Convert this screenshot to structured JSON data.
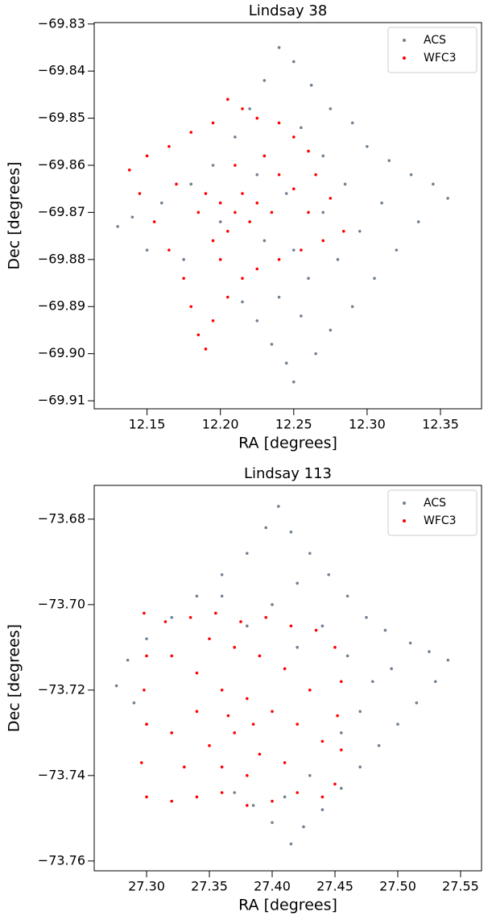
{
  "chart_data": [
    {
      "type": "scatter",
      "title": "Lindsay 38",
      "xlabel": "RA [degrees]",
      "ylabel": "Dec [degrees]",
      "legend": "upper right",
      "xlim": [
        12.114,
        12.378
      ],
      "ylim": [
        -69.9117,
        -69.8297
      ],
      "xticks": [
        12.15,
        {
          "value": 12.2,
          "label": "12.20"
        },
        12.25,
        {
          "value": 12.3,
          "label": "12.30"
        },
        12.35
      ],
      "yticks": [
        {
          "value": -69.83,
          "label": "−69.83"
        },
        {
          "value": -69.84,
          "label": "−69.84"
        },
        {
          "value": -69.85,
          "label": "−69.85"
        },
        {
          "value": -69.86,
          "label": "−69.86"
        },
        {
          "value": -69.87,
          "label": "−69.87"
        },
        {
          "value": -69.88,
          "label": "−69.88"
        },
        {
          "value": -69.89,
          "label": "−69.89"
        },
        {
          "value": -69.9,
          "label": "−69.90"
        },
        {
          "value": -69.91,
          "label": "−69.91"
        }
      ],
      "series": [
        {
          "name": "ACS",
          "color": "#708090",
          "x": [
            12.24,
            12.25,
            12.23,
            12.262,
            12.275,
            12.22,
            12.29,
            12.255,
            12.3,
            12.21,
            12.315,
            12.27,
            12.33,
            12.285,
            12.345,
            12.355,
            12.31,
            12.195,
            12.18,
            12.16,
            12.14,
            12.13,
            12.15,
            12.335,
            12.32,
            12.295,
            12.305,
            12.29,
            12.275,
            12.265,
            12.25,
            12.245,
            12.235,
            12.225,
            12.215,
            12.24,
            12.26,
            12.25,
            12.23,
            12.27,
            12.245,
            12.225,
            12.2,
            12.175,
            12.28,
            12.255
          ],
          "y": [
            -69.835,
            -69.838,
            -69.842,
            -69.843,
            -69.848,
            -69.848,
            -69.851,
            -69.852,
            -69.856,
            -69.854,
            -69.859,
            -69.858,
            -69.862,
            -69.864,
            -69.864,
            -69.867,
            -69.868,
            -69.86,
            -69.864,
            -69.868,
            -69.871,
            -69.873,
            -69.878,
            -69.872,
            -69.878,
            -69.874,
            -69.884,
            -69.89,
            -69.895,
            -69.9,
            -69.906,
            -69.902,
            -69.898,
            -69.893,
            -69.889,
            -69.888,
            -69.884,
            -69.878,
            -69.876,
            -69.87,
            -69.866,
            -69.862,
            -69.872,
            -69.88,
            -69.88,
            -69.892
          ]
        },
        {
          "name": "WFC3",
          "color": "#ff0000",
          "x": [
            12.205,
            12.215,
            12.225,
            12.24,
            12.25,
            12.26,
            12.195,
            12.18,
            12.165,
            12.15,
            12.138,
            12.145,
            12.155,
            12.165,
            12.175,
            12.18,
            12.185,
            12.19,
            12.195,
            12.205,
            12.215,
            12.225,
            12.24,
            12.255,
            12.27,
            12.284,
            12.275,
            12.265,
            12.25,
            12.235,
            12.22,
            12.21,
            12.2,
            12.19,
            12.205,
            12.215,
            12.225,
            12.195,
            12.185,
            12.23,
            12.21,
            12.17,
            12.24,
            12.2,
            12.26
          ],
          "y": [
            -69.846,
            -69.848,
            -69.85,
            -69.851,
            -69.854,
            -69.857,
            -69.851,
            -69.853,
            -69.856,
            -69.858,
            -69.861,
            -69.866,
            -69.872,
            -69.878,
            -69.884,
            -69.89,
            -69.896,
            -69.899,
            -69.893,
            -69.888,
            -69.884,
            -69.882,
            -69.88,
            -69.878,
            -69.876,
            -69.874,
            -69.867,
            -69.862,
            -69.865,
            -69.87,
            -69.872,
            -69.87,
            -69.868,
            -69.866,
            -69.874,
            -69.866,
            -69.868,
            -69.876,
            -69.87,
            -69.858,
            -69.86,
            -69.864,
            -69.862,
            -69.88,
            -69.87
          ]
        }
      ]
    },
    {
      "type": "scatter",
      "title": "Lindsay 113",
      "xlabel": "RA [degrees]",
      "ylabel": "Dec [degrees]",
      "legend": "upper right",
      "xlim": [
        27.2583,
        27.5667
      ],
      "ylim": [
        -73.7623,
        -73.6721
      ],
      "xticks": [
        {
          "value": 27.3,
          "label": "27.30"
        },
        27.35,
        {
          "value": 27.4,
          "label": "27.40"
        },
        27.45,
        {
          "value": 27.5,
          "label": "27.50"
        },
        27.55
      ],
      "yticks": [
        {
          "value": -73.68,
          "label": "−73.68"
        },
        {
          "value": -73.7,
          "label": "−73.70"
        },
        {
          "value": -73.72,
          "label": "−73.72"
        },
        {
          "value": -73.74,
          "label": "−73.74"
        },
        {
          "value": -73.76,
          "label": "−73.76"
        }
      ],
      "series": [
        {
          "name": "ACS",
          "color": "#708090",
          "x": [
            27.405,
            27.395,
            27.415,
            27.38,
            27.43,
            27.36,
            27.445,
            27.34,
            27.46,
            27.32,
            27.475,
            27.3,
            27.49,
            27.285,
            27.51,
            27.276,
            27.525,
            27.54,
            27.53,
            27.515,
            27.5,
            27.485,
            27.47,
            27.455,
            27.44,
            27.425,
            27.415,
            27.4,
            27.385,
            27.37,
            27.29,
            27.3,
            27.42,
            27.4,
            27.38,
            27.44,
            27.46,
            27.48,
            27.47,
            27.495,
            27.455,
            27.43,
            27.41,
            27.36,
            27.42
          ],
          "y": [
            -73.677,
            -73.682,
            -73.683,
            -73.688,
            -73.688,
            -73.693,
            -73.693,
            -73.698,
            -73.698,
            -73.703,
            -73.703,
            -73.708,
            -73.706,
            -73.713,
            -73.709,
            -73.719,
            -73.711,
            -73.713,
            -73.718,
            -73.723,
            -73.728,
            -73.733,
            -73.738,
            -73.743,
            -73.748,
            -73.752,
            -73.756,
            -73.751,
            -73.747,
            -73.744,
            -73.723,
            -73.728,
            -73.695,
            -73.7,
            -73.705,
            -73.705,
            -73.712,
            -73.718,
            -73.725,
            -73.715,
            -73.73,
            -73.74,
            -73.745,
            -73.698,
            -73.71
          ]
        },
        {
          "name": "WFC3",
          "color": "#ff0000",
          "x": [
            27.298,
            27.315,
            27.335,
            27.355,
            27.375,
            27.395,
            27.415,
            27.435,
            27.45,
            27.455,
            27.452,
            27.455,
            27.45,
            27.44,
            27.42,
            27.4,
            27.38,
            27.36,
            27.34,
            27.32,
            27.3,
            27.296,
            27.3,
            27.298,
            27.3,
            27.32,
            27.34,
            27.36,
            27.38,
            27.4,
            27.42,
            27.37,
            27.35,
            27.39,
            27.41,
            27.33,
            27.36,
            27.38,
            27.34,
            27.32,
            27.43,
            27.41,
            27.39,
            27.37,
            27.35,
            27.44,
            27.365,
            27.385
          ],
          "y": [
            -73.702,
            -73.704,
            -73.703,
            -73.702,
            -73.704,
            -73.703,
            -73.705,
            -73.706,
            -73.71,
            -73.718,
            -73.726,
            -73.734,
            -73.742,
            -73.745,
            -73.744,
            -73.746,
            -73.747,
            -73.744,
            -73.745,
            -73.746,
            -73.745,
            -73.737,
            -73.728,
            -73.72,
            -73.712,
            -73.712,
            -73.716,
            -73.72,
            -73.722,
            -73.725,
            -73.728,
            -73.73,
            -73.733,
            -73.735,
            -73.737,
            -73.738,
            -73.738,
            -73.74,
            -73.725,
            -73.73,
            -73.72,
            -73.715,
            -73.712,
            -73.71,
            -73.708,
            -73.732,
            -73.726,
            -73.728
          ]
        }
      ]
    }
  ]
}
